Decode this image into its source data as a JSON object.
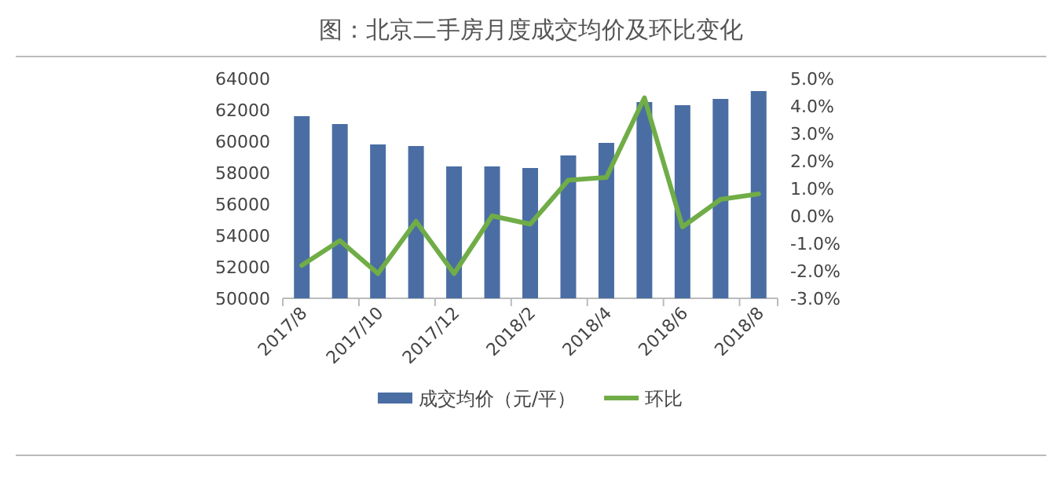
{
  "chart_data": {
    "type": "bar",
    "title": "图：北京二手房月度成交均价及环比变化",
    "categories": [
      "2017/8",
      null,
      "2017/10",
      null,
      "2017/12",
      null,
      "2018/2",
      null,
      "2018/4",
      null,
      "2018/6",
      null,
      "2018/8"
    ],
    "series": [
      {
        "name": "成交均价（元/平）",
        "color": "#4a6ea3",
        "values": [
          61600,
          61100,
          59800,
          59700,
          58400,
          58400,
          58300,
          59100,
          59900,
          62500,
          62300,
          62700,
          63200
        ]
      },
      {
        "name": "环比",
        "type": "line",
        "axis": "y2",
        "color": "#70ad47",
        "values": [
          -1.8,
          -0.9,
          -2.1,
          -0.2,
          -2.1,
          0.0,
          -0.3,
          1.3,
          1.4,
          4.3,
          -0.4,
          0.6,
          0.8
        ]
      }
    ],
    "ylim": [
      50000,
      64000
    ],
    "yticks": [
      50000,
      52000,
      54000,
      56000,
      58000,
      60000,
      62000,
      64000
    ],
    "y2lim": [
      -3,
      5
    ],
    "y2ticks": [
      {
        "value": -3,
        "label": "-3.0%"
      },
      {
        "value": -2,
        "label": "-2.0%"
      },
      {
        "value": -1,
        "label": "-1.0%"
      },
      {
        "value": 0,
        "label": "0.0%"
      },
      {
        "value": 1,
        "label": "1.0%"
      },
      {
        "value": 2,
        "label": "2.0%"
      },
      {
        "value": 3,
        "label": "3.0%"
      },
      {
        "value": 4,
        "label": "4.0%"
      },
      {
        "value": 5,
        "label": "5.0%"
      }
    ],
    "legend": "bottom",
    "grid": false
  }
}
